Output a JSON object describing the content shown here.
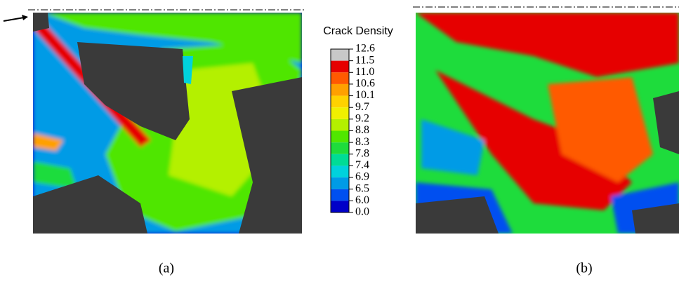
{
  "legend": {
    "title": "Crack Density",
    "levels": [
      "12.6",
      "11.5",
      "11.0",
      "10.6",
      "10.1",
      "9.7",
      "9.2",
      "8.8",
      "8.3",
      "7.8",
      "7.4",
      "6.9",
      "6.5",
      "6.0",
      "0.0"
    ],
    "colors": [
      "#c8c8c8",
      "#e60000",
      "#ff5a00",
      "#ffa000",
      "#ffd200",
      "#f0f000",
      "#b4f000",
      "#50e600",
      "#1edc3c",
      "#00dc96",
      "#00d2dc",
      "#009be6",
      "#0050f0",
      "#0000c8"
    ]
  },
  "panels": [
    {
      "label": "(a)"
    },
    {
      "label": "(b)"
    }
  ]
}
